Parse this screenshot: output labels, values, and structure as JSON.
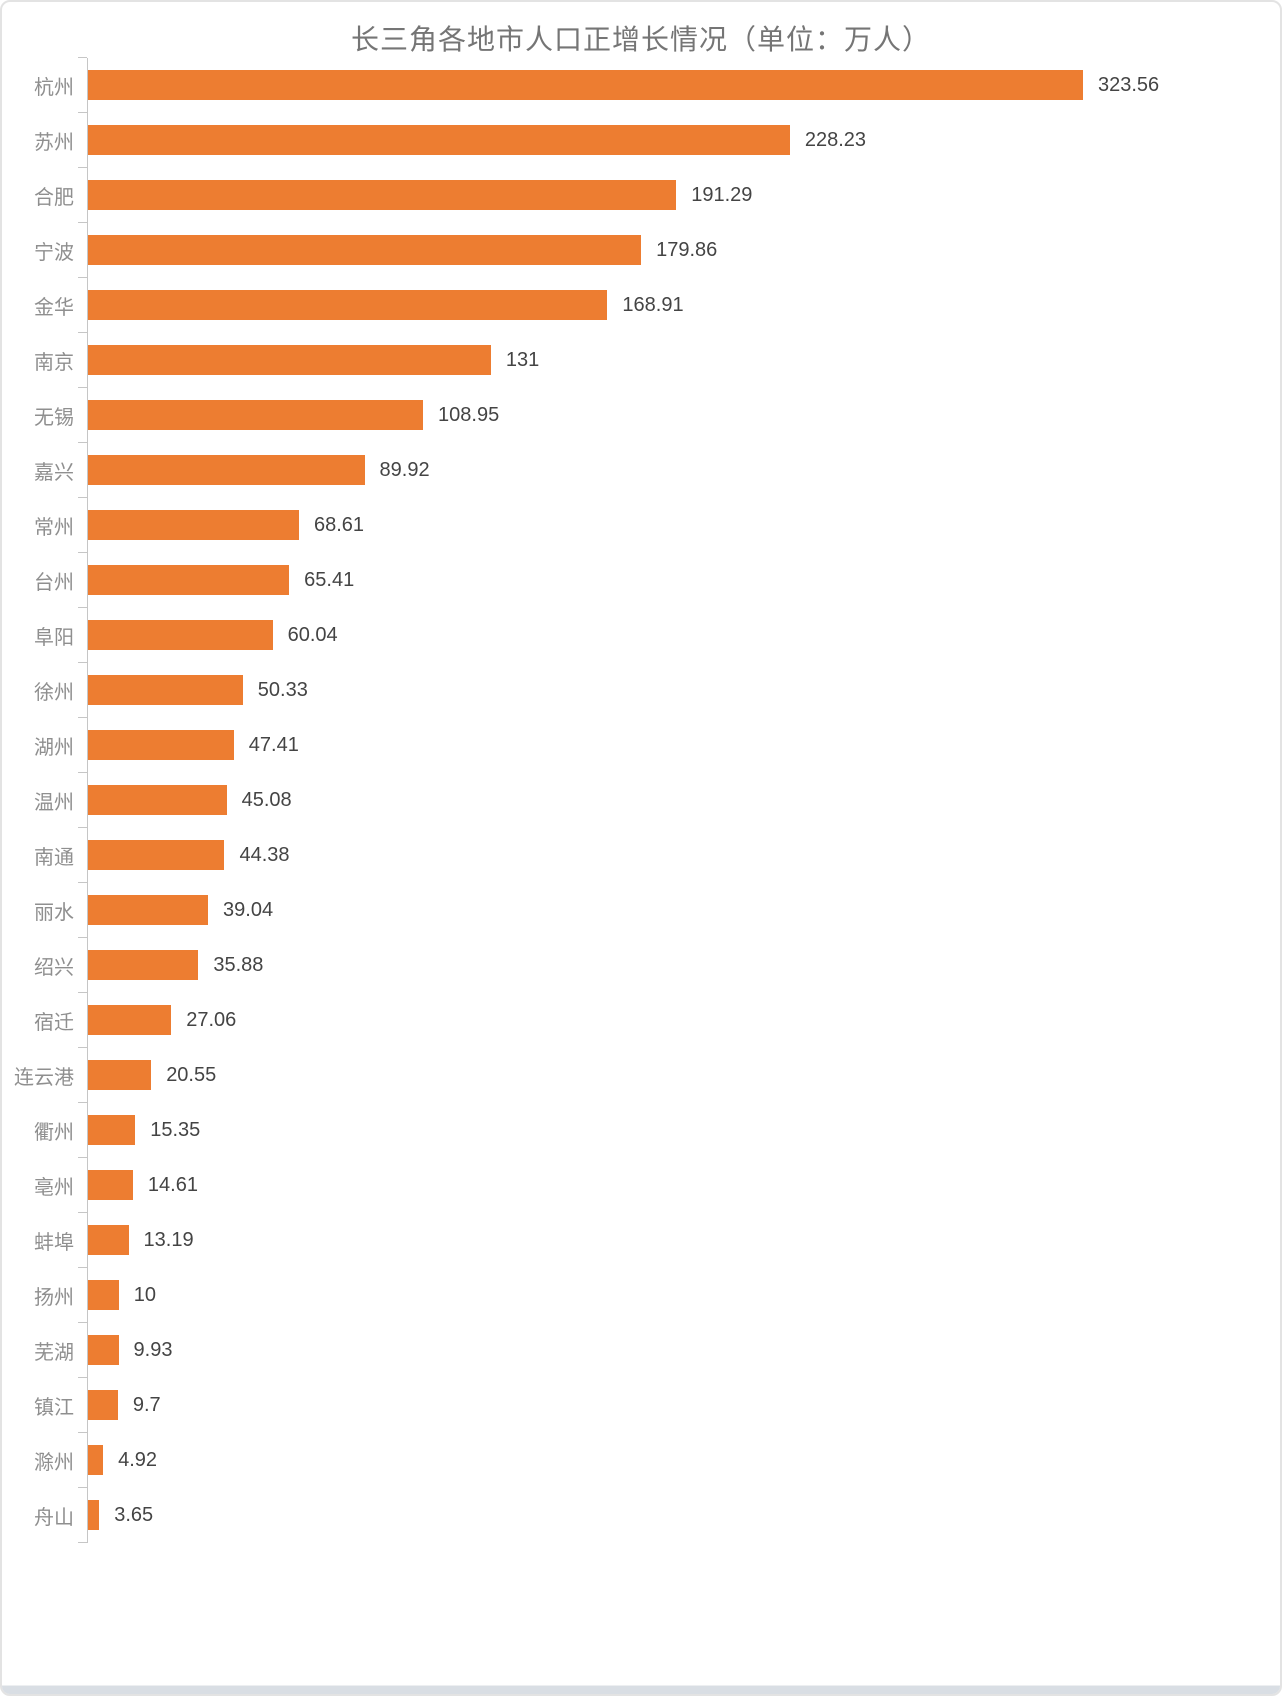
{
  "page": {
    "background": "#ffffff",
    "border_color": "#e3e3e3",
    "bottom_band_color": "#d9dee4"
  },
  "chart_data": {
    "type": "bar",
    "orientation": "horizontal",
    "title": "长三角各地市人口正增长情况（单位：万人）",
    "xlabel": "",
    "ylabel": "",
    "xlim": [
      0,
      350
    ],
    "grid": false,
    "legend": "none",
    "bar_color": "#ED7D31",
    "axis_color": "#c6c6c6",
    "title_color": "#757575",
    "category_label_color": "#8f8f8f",
    "value_label_color": "#444444",
    "categories": [
      "杭州",
      "苏州",
      "合肥",
      "宁波",
      "金华",
      "南京",
      "无锡",
      "嘉兴",
      "常州",
      "台州",
      "阜阳",
      "徐州",
      "湖州",
      "温州",
      "南通",
      "丽水",
      "绍兴",
      "宿迁",
      "连云港",
      "衢州",
      "亳州",
      "蚌埠",
      "扬州",
      "芜湖",
      "镇江",
      "滁州",
      "舟山"
    ],
    "values": [
      323.56,
      228.23,
      191.29,
      179.86,
      168.91,
      131,
      108.95,
      89.92,
      68.61,
      65.41,
      60.04,
      50.33,
      47.41,
      45.08,
      44.38,
      39.04,
      35.88,
      27.06,
      20.55,
      15.35,
      14.61,
      13.19,
      10,
      9.93,
      9.7,
      4.92,
      3.65
    ],
    "value_labels": [
      "323.56",
      "228.23",
      "191.29",
      "179.86",
      "168.91",
      "131",
      "108.95",
      "89.92",
      "68.61",
      "65.41",
      "60.04",
      "50.33",
      "47.41",
      "45.08",
      "44.38",
      "39.04",
      "35.88",
      "27.06",
      "20.55",
      "15.35",
      "14.61",
      "13.19",
      "10",
      "9.93",
      "9.7",
      "4.92",
      "3.65"
    ]
  }
}
